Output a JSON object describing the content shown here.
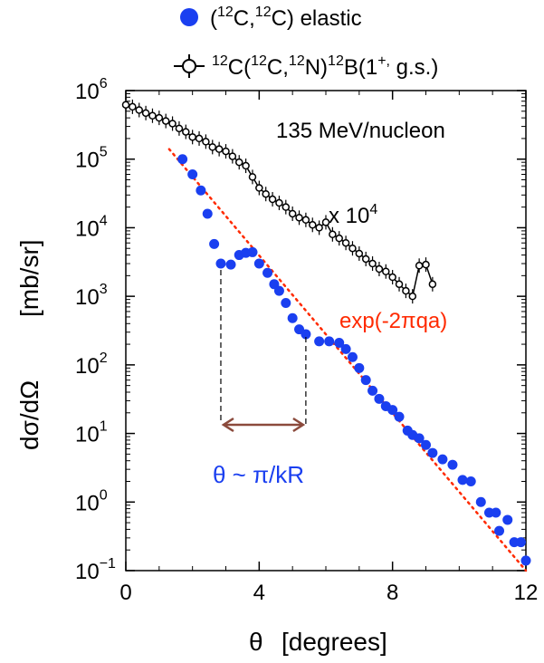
{
  "chart_data": {
    "type": "scatter",
    "xlabel_symbol": "θ",
    "xlabel_unit": "[degrees]",
    "ylabel_symbol": "dσ/dΩ",
    "ylabel_unit": "[mb/sr]",
    "xlim": [
      0,
      12
    ],
    "ylim": [
      0.1,
      1000000
    ],
    "yscale": "log",
    "x_ticks": [
      "0",
      "4",
      "8",
      "12"
    ],
    "x_tick_values": [
      0,
      4,
      8,
      12
    ],
    "y_ticks": [
      {
        "base": "10",
        "exp": "6",
        "value": 1000000
      },
      {
        "base": "10",
        "exp": "5",
        "value": 100000
      },
      {
        "base": "10",
        "exp": "4",
        "value": 10000
      },
      {
        "base": "10",
        "exp": "3",
        "value": 1000
      },
      {
        "base": "10",
        "exp": "2",
        "value": 100
      },
      {
        "base": "10",
        "exp": "1",
        "value": 10
      },
      {
        "base": "10",
        "exp": "0",
        "value": 1
      },
      {
        "base": "10",
        "exp": "−1",
        "value": 0.1
      }
    ],
    "legend": [
      {
        "text": "(12C,12C) elastic",
        "marker": "filled-circle",
        "color": "#1a3ff0"
      },
      {
        "text": "12C(12C,12N)12B(1+, g.s.)",
        "marker": "open-circle-errorbar",
        "color": "#000000"
      }
    ],
    "annotations": {
      "energy": "135 MeV/nucleon",
      "scale": "x 10",
      "scale_exp": "4",
      "fit": "exp(-2πqa)",
      "period": "θ ~ π/kR"
    },
    "colors": {
      "elastic": "#1a3ff0",
      "fit": "#ff2a00",
      "arrow": "#8b4a3c",
      "cex": "#000000"
    },
    "series": [
      {
        "name": "(12C,12C) elastic",
        "points": [
          [
            1.7,
            100000
          ],
          [
            2.0,
            60000
          ],
          [
            2.25,
            35000
          ],
          [
            2.45,
            16000
          ],
          [
            2.65,
            5800
          ],
          [
            2.85,
            3000
          ],
          [
            3.15,
            2900
          ],
          [
            3.4,
            4000
          ],
          [
            3.6,
            4300
          ],
          [
            3.8,
            4400
          ],
          [
            4.0,
            3000
          ],
          [
            4.25,
            2200
          ],
          [
            4.45,
            1500
          ],
          [
            4.6,
            1200
          ],
          [
            4.8,
            800
          ],
          [
            5.0,
            480
          ],
          [
            5.2,
            330
          ],
          [
            5.4,
            280
          ],
          [
            5.8,
            220
          ],
          [
            6.1,
            220
          ],
          [
            6.4,
            210
          ],
          [
            6.6,
            170
          ],
          [
            6.8,
            130
          ],
          [
            7.0,
            90
          ],
          [
            7.2,
            60
          ],
          [
            7.4,
            42
          ],
          [
            7.6,
            32
          ],
          [
            7.8,
            25
          ],
          [
            8.0,
            22
          ],
          [
            8.2,
            17.5
          ],
          [
            8.45,
            11
          ],
          [
            8.6,
            9.5
          ],
          [
            8.8,
            8.5
          ],
          [
            9.0,
            6.8
          ],
          [
            9.2,
            5.2
          ],
          [
            9.5,
            4.2
          ],
          [
            9.8,
            3.5
          ],
          [
            10.1,
            2.1
          ],
          [
            10.35,
            2.0
          ],
          [
            10.65,
            1.0
          ],
          [
            10.9,
            0.7
          ],
          [
            11.1,
            0.7
          ],
          [
            11.2,
            0.38
          ],
          [
            11.45,
            0.55
          ],
          [
            11.65,
            0.26
          ],
          [
            11.85,
            0.26
          ],
          [
            12.0,
            0.14
          ]
        ]
      },
      {
        "name": "12C(12C,12N)12B(1+, g.s.)",
        "points": [
          [
            0.0,
            620000
          ],
          [
            0.2,
            580000
          ],
          [
            0.4,
            520000
          ],
          [
            0.6,
            470000
          ],
          [
            0.8,
            430000
          ],
          [
            1.0,
            400000
          ],
          [
            1.2,
            360000
          ],
          [
            1.4,
            330000
          ],
          [
            1.6,
            280000
          ],
          [
            1.8,
            250000
          ],
          [
            2.0,
            210000
          ],
          [
            2.2,
            200000
          ],
          [
            2.4,
            180000
          ],
          [
            2.6,
            150000
          ],
          [
            2.8,
            140000
          ],
          [
            3.0,
            130000
          ],
          [
            3.2,
            110000
          ],
          [
            3.4,
            90000
          ],
          [
            3.6,
            80000
          ],
          [
            3.8,
            55000
          ],
          [
            4.0,
            38000
          ],
          [
            4.2,
            31000
          ],
          [
            4.4,
            26000
          ],
          [
            4.6,
            23000
          ],
          [
            4.8,
            20000
          ],
          [
            5.0,
            16000
          ],
          [
            5.2,
            14000
          ],
          [
            5.4,
            13000
          ],
          [
            5.6,
            11000
          ],
          [
            5.8,
            10000
          ],
          [
            6.0,
            12000
          ],
          [
            6.2,
            8000
          ],
          [
            6.4,
            7000
          ],
          [
            6.6,
            6000
          ],
          [
            6.8,
            5000
          ],
          [
            7.0,
            4200
          ],
          [
            7.2,
            3500
          ],
          [
            7.4,
            3000
          ],
          [
            7.6,
            2500
          ],
          [
            7.8,
            2300
          ],
          [
            8.0,
            1900
          ],
          [
            8.2,
            1500
          ],
          [
            8.4,
            1200
          ],
          [
            8.6,
            1000
          ],
          [
            8.8,
            2800
          ],
          [
            9.0,
            2900
          ],
          [
            9.2,
            1500
          ]
        ]
      }
    ],
    "fit_line": {
      "name": "exp(-2πqa)",
      "x": [
        1.3,
        12.0
      ],
      "y": [
        140000,
        0.1
      ]
    },
    "period_marker": {
      "x_start": 2.85,
      "x_end": 5.4
    }
  }
}
